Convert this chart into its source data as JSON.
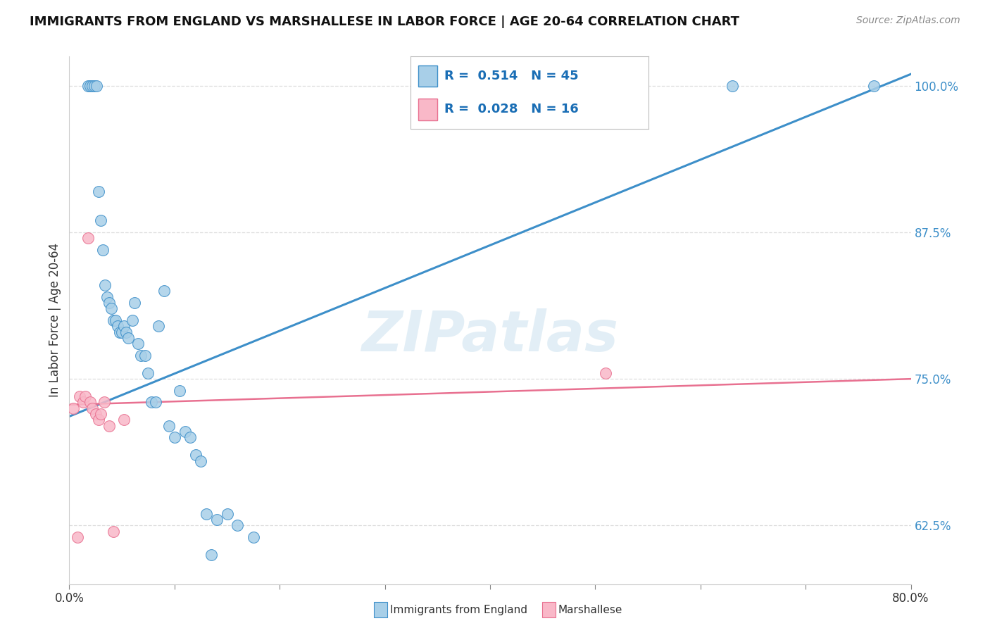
{
  "title": "IMMIGRANTS FROM ENGLAND VS MARSHALLESE IN LABOR FORCE | AGE 20-64 CORRELATION CHART",
  "source": "Source: ZipAtlas.com",
  "ylabel": "In Labor Force | Age 20-64",
  "xmin": 0.0,
  "xmax": 0.8,
  "ymin": 0.575,
  "ymax": 1.025,
  "yticks": [
    0.625,
    0.75,
    0.875,
    1.0
  ],
  "ytick_labels": [
    "62.5%",
    "75.0%",
    "87.5%",
    "100.0%"
  ],
  "xticks": [
    0.0,
    0.1,
    0.2,
    0.3,
    0.4,
    0.5,
    0.6,
    0.7,
    0.8
  ],
  "xtick_labels": [
    "0.0%",
    "",
    "",
    "",
    "",
    "",
    "",
    "",
    "80.0%"
  ],
  "blue_R": 0.514,
  "blue_N": 45,
  "pink_R": 0.028,
  "pink_N": 16,
  "blue_color": "#a8cfe8",
  "pink_color": "#f9b8c8",
  "line_blue": "#3d8fc9",
  "line_pink": "#e87090",
  "watermark": "ZIPatlas",
  "watermark_color": "#d0e4f0",
  "legend_label_blue": "Immigrants from England",
  "legend_label_pink": "Marshallese",
  "blue_x": [
    0.018,
    0.02,
    0.022,
    0.024,
    0.026,
    0.028,
    0.03,
    0.032,
    0.034,
    0.036,
    0.038,
    0.04,
    0.042,
    0.044,
    0.046,
    0.048,
    0.05,
    0.052,
    0.054,
    0.056,
    0.06,
    0.062,
    0.065,
    0.068,
    0.072,
    0.075,
    0.078,
    0.082,
    0.085,
    0.09,
    0.095,
    0.1,
    0.105,
    0.11,
    0.115,
    0.12,
    0.125,
    0.13,
    0.135,
    0.14,
    0.15,
    0.16,
    0.175,
    0.63,
    0.765
  ],
  "blue_y": [
    1.0,
    1.0,
    1.0,
    1.0,
    1.0,
    0.91,
    0.885,
    0.86,
    0.83,
    0.82,
    0.815,
    0.81,
    0.8,
    0.8,
    0.795,
    0.79,
    0.79,
    0.795,
    0.79,
    0.785,
    0.8,
    0.815,
    0.78,
    0.77,
    0.77,
    0.755,
    0.73,
    0.73,
    0.795,
    0.825,
    0.71,
    0.7,
    0.74,
    0.705,
    0.7,
    0.685,
    0.68,
    0.635,
    0.6,
    0.63,
    0.635,
    0.625,
    0.615,
    1.0,
    1.0
  ],
  "pink_x": [
    0.004,
    0.008,
    0.01,
    0.013,
    0.015,
    0.018,
    0.02,
    0.022,
    0.025,
    0.028,
    0.03,
    0.033,
    0.038,
    0.042,
    0.052,
    0.51
  ],
  "pink_y": [
    0.725,
    0.615,
    0.735,
    0.73,
    0.735,
    0.87,
    0.73,
    0.725,
    0.72,
    0.715,
    0.72,
    0.73,
    0.71,
    0.62,
    0.715,
    0.755
  ],
  "blue_trendline_x": [
    0.0,
    0.8
  ],
  "blue_trendline_y": [
    0.718,
    1.01
  ],
  "pink_trendline_x": [
    0.0,
    0.8
  ],
  "pink_trendline_y": [
    0.728,
    0.75
  ],
  "grid_color": "#dddddd",
  "tick_color": "#888888",
  "axis_color": "#cccccc",
  "title_color": "#111111",
  "source_color": "#888888",
  "ylabel_color": "#333333",
  "ytick_color": "#3d8fc9",
  "xtick_color": "#333333"
}
